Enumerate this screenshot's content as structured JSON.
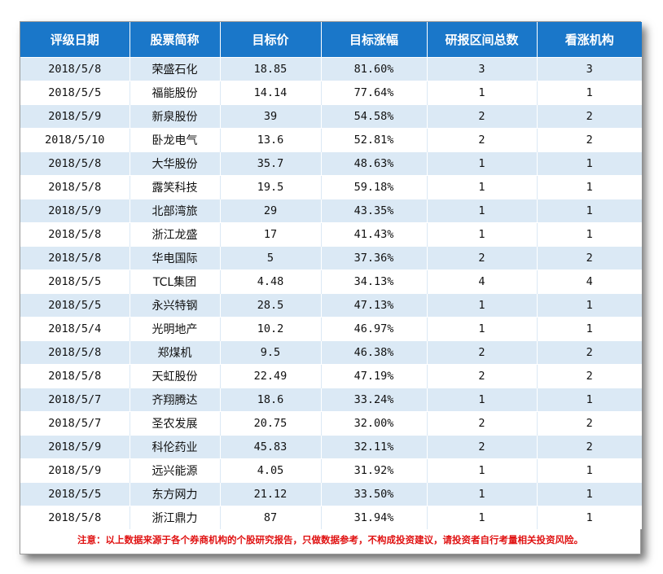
{
  "table": {
    "headers": [
      "评级日期",
      "股票简称",
      "目标价",
      "目标涨幅",
      "研报区间总数",
      "看涨机构"
    ],
    "rows": [
      [
        "2018/5/8",
        "荣盛石化",
        "18.85",
        "81.60%",
        "3",
        "3"
      ],
      [
        "2018/5/5",
        "福能股份",
        "14.14",
        "77.64%",
        "1",
        "1"
      ],
      [
        "2018/5/9",
        "新泉股份",
        "39",
        "54.58%",
        "2",
        "2"
      ],
      [
        "2018/5/10",
        "卧龙电气",
        "13.6",
        "52.81%",
        "2",
        "2"
      ],
      [
        "2018/5/8",
        "大华股份",
        "35.7",
        "48.63%",
        "1",
        "1"
      ],
      [
        "2018/5/8",
        "露笑科技",
        "19.5",
        "59.18%",
        "1",
        "1"
      ],
      [
        "2018/5/9",
        "北部湾旅",
        "29",
        "43.35%",
        "1",
        "1"
      ],
      [
        "2018/5/8",
        "浙江龙盛",
        "17",
        "41.43%",
        "1",
        "1"
      ],
      [
        "2018/5/8",
        "华电国际",
        "5",
        "37.36%",
        "2",
        "2"
      ],
      [
        "2018/5/5",
        "TCL集团",
        "4.48",
        "34.13%",
        "4",
        "4"
      ],
      [
        "2018/5/5",
        "永兴特钢",
        "28.5",
        "47.13%",
        "1",
        "1"
      ],
      [
        "2018/5/4",
        "光明地产",
        "10.2",
        "46.97%",
        "1",
        "1"
      ],
      [
        "2018/5/8",
        "郑煤机",
        "9.5",
        "46.38%",
        "2",
        "2"
      ],
      [
        "2018/5/8",
        "天虹股份",
        "22.49",
        "47.19%",
        "2",
        "2"
      ],
      [
        "2018/5/7",
        "齐翔腾达",
        "18.6",
        "33.24%",
        "1",
        "1"
      ],
      [
        "2018/5/7",
        "圣农发展",
        "20.75",
        "32.00%",
        "2",
        "2"
      ],
      [
        "2018/5/9",
        "科伦药业",
        "45.83",
        "32.11%",
        "2",
        "2"
      ],
      [
        "2018/5/9",
        "远兴能源",
        "4.05",
        "31.92%",
        "1",
        "1"
      ],
      [
        "2018/5/5",
        "东方网力",
        "21.12",
        "33.50%",
        "1",
        "1"
      ],
      [
        "2018/5/8",
        "浙江鼎力",
        "87",
        "31.94%",
        "1",
        "1"
      ]
    ]
  },
  "note": "注意：以上数据来源于各个券商机构的个股研究报告，只做数据参考，不构成投资建议，请投资者自行考量相关投资风险。",
  "colors": {
    "header_bg": "#1a77c9",
    "stripe_bg": "#dbe9f5",
    "note_text": "#e01212"
  }
}
